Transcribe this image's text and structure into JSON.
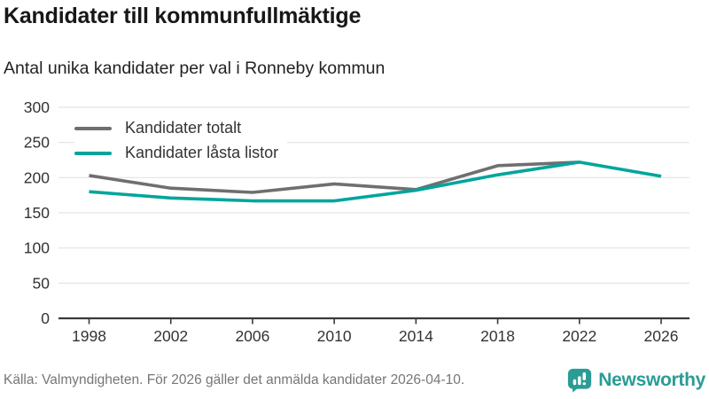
{
  "header": {
    "title": "Kandidater till kommunfullmäktige",
    "subtitle": "Antal unika kandidater per val i Ronneby kommun"
  },
  "footer": {
    "source": "Källa: Valmyndigheten. För 2026 gäller det anmälda kandidater 2026-04-10.",
    "brand": "Newsworthy"
  },
  "chart_data": {
    "type": "line",
    "title": "Kandidater till kommunfullmäktige",
    "subtitle": "Antal unika kandidater per val i Ronneby kommun",
    "x": [
      1998,
      2002,
      2006,
      2010,
      2014,
      2018,
      2022,
      2026
    ],
    "series": [
      {
        "name": "Kandidater totalt",
        "color": "#6f6f6f",
        "values": [
          203,
          185,
          179,
          191,
          183,
          217,
          222,
          null
        ]
      },
      {
        "name": "Kandidater låsta listor",
        "color": "#00a59c",
        "values": [
          180,
          171,
          167,
          167,
          182,
          204,
          222,
          202
        ]
      }
    ],
    "ylim": [
      0,
      300
    ],
    "yticks": [
      0,
      50,
      100,
      150,
      200,
      250,
      300
    ],
    "grid": "horizontal",
    "legend_position": "top-left",
    "colors": {
      "grid": "#e3e3e3",
      "axis": "#3a3a3a",
      "tick_label": "#333333",
      "brand_teal": "#2a9c95"
    }
  }
}
